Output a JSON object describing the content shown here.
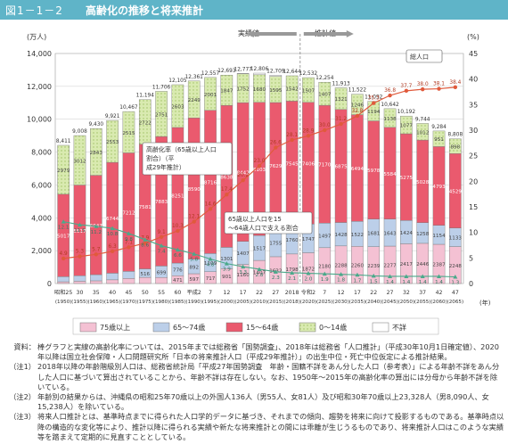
{
  "header": {
    "figure_id": "図1－1－2",
    "title": "高齢化の推移と将来推計"
  },
  "chart_data": {
    "type": "bar",
    "title": "高齢化の推移と将来推計",
    "y_left_unit": "(万人)",
    "y_right_unit": "(%)",
    "ylim_left": [
      0,
      14000
    ],
    "ylim_right": [
      0,
      45
    ],
    "y_left_ticks": [
      "0",
      "2,000",
      "4,000",
      "6,000",
      "8,000",
      "10,000",
      "12,000",
      "14,000"
    ],
    "y_right_ticks": [
      "0",
      "5",
      "10",
      "15",
      "20",
      "25",
      "30",
      "35",
      "40",
      "45"
    ],
    "x_unit": "(年)",
    "categories_top": [
      "昭和25",
      "30",
      "35",
      "40",
      "45",
      "50",
      "55",
      "60",
      "平成2",
      "7",
      "12",
      "17",
      "22",
      "27",
      "2018",
      "令和2",
      "7",
      "12",
      "17",
      "22",
      "27",
      "32",
      "37",
      "42",
      "47"
    ],
    "categories_bottom": [
      "(1950)",
      "(1955)",
      "(1960)",
      "(1965)",
      "(1970)",
      "(1975)",
      "(1980)",
      "(1985)",
      "(1990)",
      "(1995)",
      "(2000)",
      "(2005)",
      "(2010)",
      "(2015)",
      "(2018)",
      "(2020)",
      "(2025)",
      "(2030)",
      "(2035)",
      "(2040)",
      "(2045)",
      "(2050)",
      "(2055)",
      "(2060)",
      "(2065)"
    ],
    "actual_label": "実績値",
    "projection_label": "推計値",
    "total_label": "総人口",
    "aging_rate_label": "高齢化率（65歳以上人口割合）（平成29年推計）",
    "support_ratio_label": "65歳以上人口を15～64歳人口で支える割合",
    "series": [
      {
        "name": "75歳以上",
        "color": "#f4c1d3",
        "values": [
          107,
          139,
          164,
          224,
          306,
          377,
          366,
          471,
          597,
          717,
          901,
          1160,
          1407,
          1632,
          1798,
          1872,
          2180,
          2288,
          2260,
          2239,
          2277,
          2417,
          2446,
          2387,
          2248
        ]
      },
      {
        "name": "65～74歳",
        "color": "#bccfe9",
        "values": [
          309,
          338,
          376,
          405,
          434,
          516,
          699,
          776,
          892,
          1109,
          1301,
          1407,
          1517,
          1755,
          1760,
          1747,
          1497,
          1428,
          1522,
          1681,
          1643,
          1424,
          1258,
          1154,
          1133
        ]
      },
      {
        "name": "15～64歳",
        "color": "#ea5a6e",
        "values": [
          5017,
          5517,
          6047,
          6744,
          7212,
          7581,
          7883,
          8251,
          8590,
          8716,
          8638,
          8442,
          8103,
          7629,
          7545,
          7406,
          7170,
          6875,
          6494,
          5978,
          5584,
          5275,
          5028,
          4793,
          4529
        ]
      },
      {
        "name": "0～14歳",
        "color": "#d9eab0",
        "values": [
          2979,
          3012,
          2843,
          2553,
          2515,
          2722,
          2751,
          2603,
          2249,
          2001,
          1847,
          1752,
          1680,
          1595,
          1542,
          1507,
          1407,
          1321,
          1246,
          1194,
          1138,
          1077,
          1012,
          951,
          898
        ]
      },
      {
        "name": "不詳",
        "color": "#ffffff",
        "values": [
          0,
          0,
          0,
          0,
          0,
          0,
          0,
          0,
          0,
          0,
          0,
          25,
          98,
          69,
          0,
          0,
          0,
          0,
          0,
          0,
          0,
          0,
          0,
          0,
          0
        ]
      }
    ],
    "totals": [
      "8,411",
      "9,008",
      "9,430",
      "9,921",
      "10,467",
      "11,194",
      "11,706",
      "12,105",
      "12,361",
      "12,557",
      "12,693",
      "12,777",
      "12,806",
      "12,709",
      "12,644",
      "12,532",
      "12,254",
      "11,913",
      "11,522",
      "11,092",
      "10,642",
      "10,192",
      "9,744",
      "9,284",
      "8,808"
    ],
    "aging_rate": {
      "name": "高齢化率",
      "color": "#e05a3c",
      "values": [
        4.9,
        5.3,
        5.7,
        6.3,
        7.1,
        7.9,
        9.1,
        10.3,
        12.1,
        14.6,
        17.4,
        20.2,
        23.0,
        26.6,
        28.1,
        28.9,
        30.0,
        31.2,
        32.8,
        35.3,
        36.8,
        37.7,
        38.0,
        38.1,
        38.4
      ]
    },
    "support_ratio": {
      "name": "65歳以上1人を支える15～64歳人口",
      "color": "#4aa98a",
      "values": [
        12.1,
        11.5,
        11.2,
        10.8,
        9.8,
        8.6,
        7.4,
        6.6,
        5.8,
        4.8,
        3.9,
        3.3,
        2.8,
        2.3,
        2.1,
        2.0,
        1.9,
        1.8,
        1.7,
        1.5,
        1.4,
        1.4,
        1.4,
        1.4,
        1.3
      ]
    },
    "legend": [
      "75歳以上",
      "65～74歳",
      "15～64歳",
      "0～14歳",
      "不詳"
    ]
  },
  "notes": [
    {
      "label": "資料：",
      "text": "棒グラフと実線の高齢化率については、2015年までは総務省「国勢調査」、2018年は総務省「人口推計」（平成30年10月1日確定値）、2020年以降は国立社会保障・人口問題研究所「日本の将来推計人口（平成29年推計）」の出生中位・死亡中位仮定による推計結果。"
    },
    {
      "label": "（注1）",
      "text": "2018年以降の年齢階級別人口は、総務省統計局「平成27年国勢調査　年齢・国籍不詳をあん分した人口（参考表）」による年齢不詳をあん分した人口に基づいて算出されていることから、年齢不詳は存在しない。なお、1950年～2015年の高齢化率の算出には分母から年齢不詳を除いている。"
    },
    {
      "label": "（注2）",
      "text": "年齢別の結果からは、沖縄県の昭和25年70歳以上の外国人136人（男55人、女81人）及び昭和30年70歳以上23,328人（男8,090人、女15,238人）を除いている。"
    },
    {
      "label": "（注3）",
      "text": "将来人口推計とは、基準時点までに得られた人口学的データに基づき、それまでの傾向、趨勢を将来に向けて投影するものである。基準時点以降の構造的な変化等により、推計以降に得られる実績や新たな将来推計との間には乖離が生じうるものであり、将来推計人口はこのような実績等を踏まえて定期的に見直すこととしている。"
    }
  ]
}
